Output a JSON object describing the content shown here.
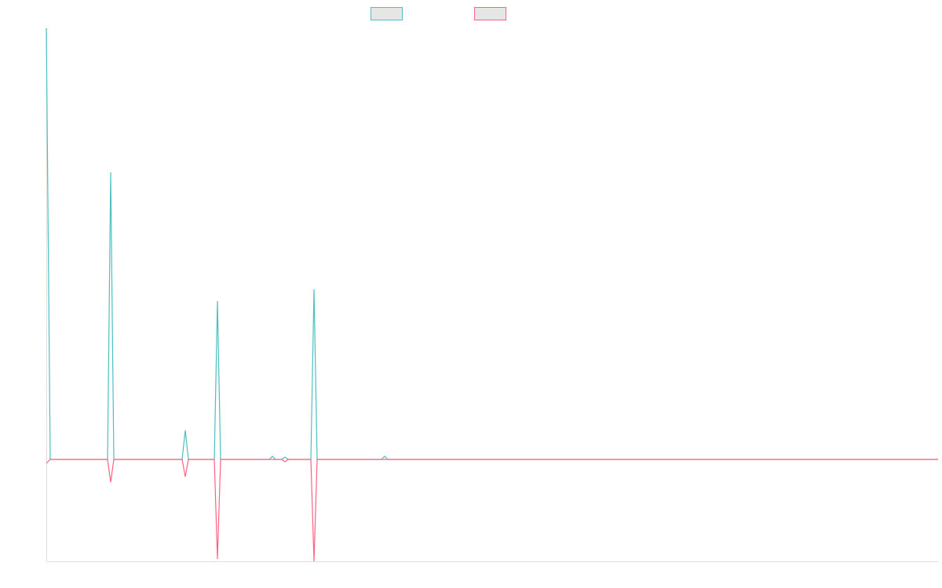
{
  "chart_data": {
    "type": "line",
    "x": [
      0,
      5,
      78,
      82,
      86,
      173,
      177,
      181,
      214,
      218,
      222,
      284,
      288,
      292,
      300,
      304,
      308,
      337,
      341,
      345,
      427,
      431,
      435,
      1136
    ],
    "xlim": [
      0,
      1136
    ],
    "ylim": [
      -130,
      550
    ],
    "series": [
      {
        "color": "#4bc0c0",
        "values": [
          550,
          0,
          0,
          366,
          0,
          0,
          37,
          0,
          0,
          202,
          0,
          0,
          4,
          0,
          0,
          3,
          0,
          0,
          217,
          0,
          0,
          4,
          0,
          0
        ]
      },
      {
        "color": "#ff6384",
        "values": [
          -5,
          0,
          0,
          -29,
          0,
          0,
          -22,
          0,
          0,
          -127,
          0,
          0,
          0,
          0,
          0,
          -3,
          0,
          0,
          -130,
          0,
          0,
          0,
          0,
          0
        ]
      }
    ]
  }
}
